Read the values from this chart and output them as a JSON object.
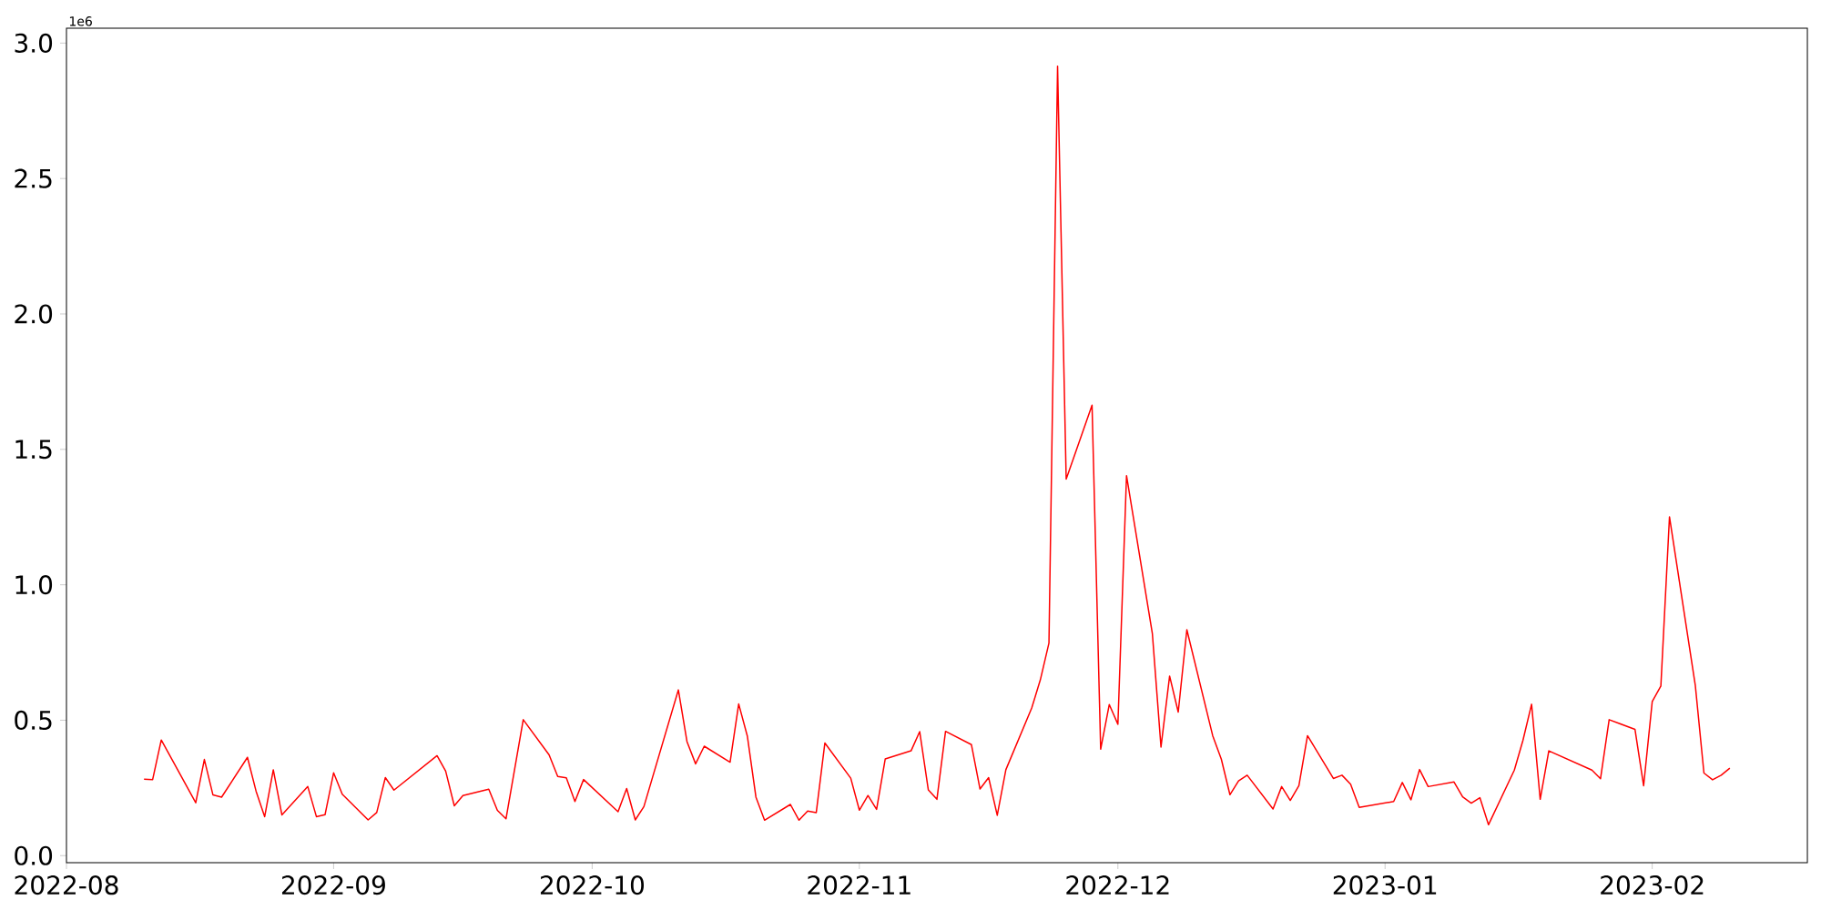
{
  "chart_data": {
    "type": "line",
    "color": "#ff0000",
    "x": [
      "2022-08-10",
      "2022-08-11",
      "2022-08-12",
      "2022-08-16",
      "2022-08-17",
      "2022-08-18",
      "2022-08-19",
      "2022-08-22",
      "2022-08-23",
      "2022-08-24",
      "2022-08-25",
      "2022-08-26",
      "2022-08-29",
      "2022-08-30",
      "2022-08-31",
      "2022-09-01",
      "2022-09-02",
      "2022-09-05",
      "2022-09-06",
      "2022-09-07",
      "2022-09-08",
      "2022-09-13",
      "2022-09-14",
      "2022-09-15",
      "2022-09-16",
      "2022-09-19",
      "2022-09-20",
      "2022-09-21",
      "2022-09-23",
      "2022-09-26",
      "2022-09-27",
      "2022-09-28",
      "2022-09-29",
      "2022-09-30",
      "2022-10-04",
      "2022-10-05",
      "2022-10-06",
      "2022-10-07",
      "2022-10-11",
      "2022-10-12",
      "2022-10-13",
      "2022-10-14",
      "2022-10-17",
      "2022-10-18",
      "2022-10-19",
      "2022-10-20",
      "2022-10-21",
      "2022-10-24",
      "2022-10-25",
      "2022-10-26",
      "2022-10-27",
      "2022-10-28",
      "2022-10-31",
      "2022-11-01",
      "2022-11-02",
      "2022-11-03",
      "2022-11-04",
      "2022-11-07",
      "2022-11-08",
      "2022-11-09",
      "2022-11-10",
      "2022-11-11",
      "2022-11-14",
      "2022-11-15",
      "2022-11-16",
      "2022-11-17",
      "2022-11-18",
      "2022-11-21",
      "2022-11-22",
      "2022-11-23",
      "2022-11-24",
      "2022-11-25",
      "2022-11-28",
      "2022-11-29",
      "2022-11-30",
      "2022-12-01",
      "2022-12-02",
      "2022-12-05",
      "2022-12-06",
      "2022-12-07",
      "2022-12-08",
      "2022-12-09",
      "2022-12-12",
      "2022-12-13",
      "2022-12-14",
      "2022-12-15",
      "2022-12-16",
      "2022-12-19",
      "2022-12-20",
      "2022-12-21",
      "2022-12-22",
      "2022-12-23",
      "2022-12-26",
      "2022-12-27",
      "2022-12-28",
      "2022-12-29",
      "2023-01-02",
      "2023-01-03",
      "2023-01-04",
      "2023-01-05",
      "2023-01-06",
      "2023-01-09",
      "2023-01-10",
      "2023-01-11",
      "2023-01-12",
      "2023-01-13",
      "2023-01-16",
      "2023-01-17",
      "2023-01-18",
      "2023-01-19",
      "2023-01-20",
      "2023-01-25",
      "2023-01-26",
      "2023-01-27",
      "2023-01-30",
      "2023-01-31",
      "2023-02-01",
      "2023-02-02",
      "2023-02-03",
      "2023-02-06",
      "2023-02-07",
      "2023-02-08",
      "2023-02-09",
      "2023-02-10"
    ],
    "values": [
      0.282,
      0.281,
      0.427,
      0.195,
      0.355,
      0.224,
      0.216,
      0.363,
      0.238,
      0.144,
      0.317,
      0.15,
      0.255,
      0.144,
      0.151,
      0.306,
      0.227,
      0.132,
      0.159,
      0.288,
      0.242,
      0.369,
      0.312,
      0.184,
      0.222,
      0.245,
      0.167,
      0.136,
      0.502,
      0.372,
      0.292,
      0.287,
      0.2,
      0.281,
      0.162,
      0.248,
      0.132,
      0.181,
      0.612,
      0.421,
      0.339,
      0.404,
      0.345,
      0.56,
      0.442,
      0.216,
      0.131,
      0.189,
      0.131,
      0.165,
      0.159,
      0.416,
      0.286,
      0.168,
      0.222,
      0.171,
      0.357,
      0.387,
      0.458,
      0.243,
      0.208,
      0.459,
      0.41,
      0.246,
      0.288,
      0.149,
      0.317,
      0.545,
      0.649,
      0.785,
      2.915,
      1.39,
      1.663,
      0.393,
      0.558,
      0.485,
      1.403,
      0.819,
      0.401,
      0.663,
      0.53,
      0.834,
      0.443,
      0.356,
      0.225,
      0.276,
      0.297,
      0.172,
      0.255,
      0.204,
      0.258,
      0.443,
      0.285,
      0.297,
      0.264,
      0.178,
      0.2,
      0.27,
      0.206,
      0.318,
      0.255,
      0.272,
      0.217,
      0.194,
      0.214,
      0.114,
      0.316,
      0.426,
      0.559,
      0.208,
      0.387,
      0.316,
      0.284,
      0.502,
      0.466,
      0.258,
      0.569,
      0.626,
      1.251,
      0.628,
      0.305,
      0.28,
      0.297,
      0.323
    ],
    "xlim": [
      "2022-08-01",
      "2023-02-19"
    ],
    "ylim": [
      -0.026,
      3.055
    ],
    "xticks": [
      {
        "value": "2022-08-01",
        "label": "2022-08"
      },
      {
        "value": "2022-09-01",
        "label": "2022-09"
      },
      {
        "value": "2022-10-01",
        "label": "2022-10"
      },
      {
        "value": "2022-11-01",
        "label": "2022-11"
      },
      {
        "value": "2022-12-01",
        "label": "2022-12"
      },
      {
        "value": "2023-01-01",
        "label": "2023-01"
      },
      {
        "value": "2023-02-01",
        "label": "2023-02"
      }
    ],
    "yticks": [
      {
        "value": 0,
        "label": "0.0"
      },
      {
        "value": 0.5,
        "label": "0.5"
      },
      {
        "value": 1,
        "label": "1.0"
      },
      {
        "value": 1.5,
        "label": "1.5"
      },
      {
        "value": 2,
        "label": "2.0"
      },
      {
        "value": 2.5,
        "label": "2.5"
      },
      {
        "value": 3,
        "label": "3.0"
      }
    ],
    "annotations": [
      "1e6"
    ]
  }
}
